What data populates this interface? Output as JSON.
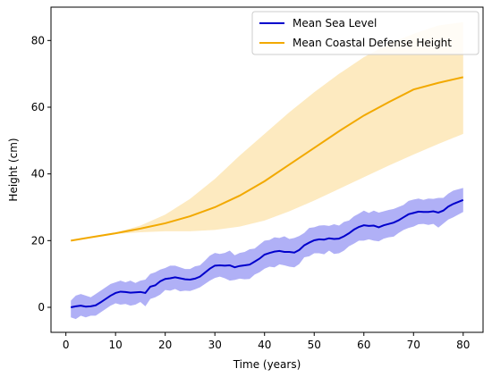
{
  "chart_data": {
    "type": "line",
    "title": "",
    "xlabel": "Time (years)",
    "ylabel": "Height (cm)",
    "xlim": [
      -3,
      84
    ],
    "ylim": [
      -7.5,
      90
    ],
    "xticks": [
      0,
      10,
      20,
      30,
      40,
      50,
      60,
      70,
      80
    ],
    "yticks": [
      0,
      20,
      40,
      60,
      80
    ],
    "grid": false,
    "legend": "top-right",
    "series": [
      {
        "name": "Mean Sea Level",
        "color": "#0000cc",
        "band_color": "#7b7bf0",
        "x": [
          1,
          2,
          3,
          4,
          5,
          6,
          7,
          8,
          9,
          10,
          11,
          12,
          13,
          14,
          15,
          16,
          17,
          18,
          19,
          20,
          21,
          22,
          23,
          24,
          25,
          26,
          27,
          28,
          29,
          30,
          31,
          32,
          33,
          34,
          35,
          36,
          37,
          38,
          39,
          40,
          41,
          42,
          43,
          44,
          45,
          46,
          47,
          48,
          49,
          50,
          51,
          52,
          53,
          54,
          55,
          56,
          57,
          58,
          59,
          60,
          61,
          62,
          63,
          64,
          65,
          66,
          67,
          68,
          69,
          70,
          71,
          72,
          73,
          74,
          75,
          76,
          77,
          78,
          79,
          80
        ],
        "mean": [
          0,
          0.3,
          0.5,
          0.2,
          0.3,
          0.6,
          1.5,
          2.5,
          3.5,
          4.3,
          4.7,
          4.6,
          4.4,
          4.5,
          4.6,
          4.3,
          6.2,
          6.6,
          7.8,
          8.5,
          8.7,
          9.0,
          8.7,
          8.4,
          8.3,
          8.6,
          9.2,
          10.4,
          11.6,
          12.5,
          12.6,
          12.5,
          12.6,
          12.0,
          12.4,
          12.6,
          12.8,
          13.7,
          14.6,
          15.8,
          16.3,
          16.7,
          16.9,
          16.6,
          16.6,
          16.4,
          17.2,
          18.6,
          19.4,
          20.1,
          20.4,
          20.3,
          20.7,
          20.5,
          20.6,
          21.3,
          22.2,
          23.3,
          24.1,
          24.6,
          24.4,
          24.5,
          24.0,
          24.6,
          25.0,
          25.4,
          26.1,
          27.0,
          27.9,
          28.3,
          28.7,
          28.6,
          28.6,
          28.8,
          28.4,
          29.0,
          30.2,
          31.0,
          31.6,
          32.2
        ],
        "lower": [
          -3,
          -3.5,
          -2.5,
          -3,
          -2.5,
          -2.5,
          -1.5,
          -0.5,
          0.5,
          1.2,
          0.8,
          1.0,
          0.5,
          0.8,
          1.6,
          0.3,
          2.5,
          3.0,
          3.8,
          5.2,
          5.0,
          5.5,
          4.8,
          5.0,
          4.9,
          5.4,
          6.0,
          7.0,
          8.0,
          8.8,
          9.2,
          8.7,
          8.0,
          8.2,
          8.6,
          8.4,
          8.5,
          9.8,
          10.5,
          11.6,
          12.2,
          12.0,
          12.9,
          12.6,
          12.2,
          12.0,
          13.0,
          15.0,
          15.3,
          16.2,
          16.2,
          15.9,
          17.0,
          16.0,
          16.2,
          17.0,
          18.3,
          19.1,
          20.0,
          20.0,
          20.4,
          20.0,
          19.8,
          20.6,
          21.0,
          21.2,
          22.3,
          23.2,
          23.8,
          24.2,
          24.9,
          25.0,
          24.7,
          25.0,
          23.9,
          25.1,
          26.3,
          27.0,
          27.8,
          28.6
        ],
        "upper": [
          2,
          3.5,
          4,
          3.5,
          3,
          4,
          5,
          6,
          7,
          7.5,
          8,
          7.5,
          8,
          7.3,
          8.0,
          8.3,
          10.0,
          10.5,
          11.3,
          11.8,
          12.5,
          12.5,
          12.0,
          11.5,
          11.5,
          12.3,
          12.6,
          14.0,
          15.5,
          16.3,
          16.0,
          16.3,
          17.0,
          15.6,
          16.3,
          16.6,
          17.4,
          17.6,
          18.8,
          20.0,
          20.2,
          21.0,
          20.8,
          21.3,
          20.5,
          20.8,
          21.4,
          22.3,
          23.8,
          24.0,
          24.5,
          24.6,
          24.4,
          24.9,
          24.5,
          25.6,
          26.0,
          27.3,
          28.1,
          29.0,
          28.3,
          29.0,
          28.4,
          28.8,
          29.2,
          29.5,
          30.1,
          30.7,
          31.9,
          32.3,
          32.6,
          32.2,
          32.6,
          32.5,
          32.8,
          32.8,
          34.1,
          35.0,
          35.4,
          35.8
        ]
      },
      {
        "name": "Mean Coastal Defense Height",
        "color": "#f2a900",
        "band_color": "#fbd88c",
        "x": [
          1,
          5,
          10,
          15,
          20,
          25,
          30,
          35,
          40,
          45,
          50,
          55,
          60,
          65,
          70,
          75,
          80
        ],
        "mean": [
          20,
          21,
          22.2,
          23.6,
          25.2,
          27.3,
          30.0,
          33.5,
          37.8,
          42.8,
          47.8,
          52.8,
          57.5,
          61.5,
          65.3,
          67.3,
          69.0
        ],
        "lower": [
          20,
          21,
          22.0,
          22.5,
          22.8,
          22.8,
          23.2,
          24.2,
          26.0,
          28.8,
          32.0,
          35.5,
          39.0,
          42.5,
          45.8,
          49.0,
          52.0
        ],
        "upper": [
          20,
          21,
          22.4,
          24.5,
          27.8,
          32.5,
          38.5,
          45.5,
          52.0,
          58.5,
          64.5,
          70.0,
          75.0,
          79.0,
          82.0,
          84.5,
          85.5
        ]
      }
    ]
  }
}
